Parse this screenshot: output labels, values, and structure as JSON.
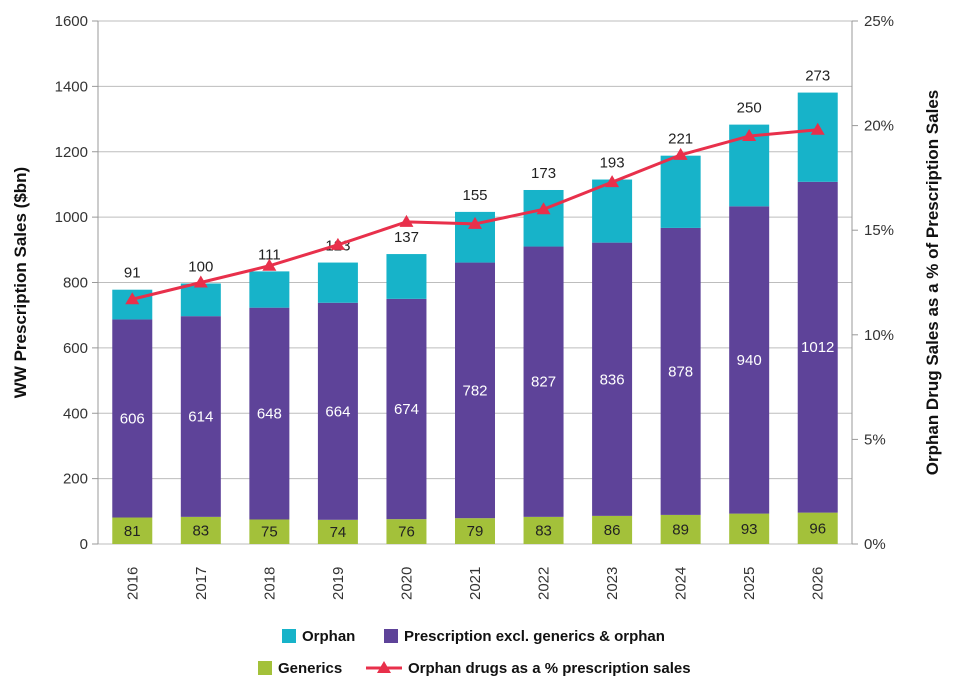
{
  "chart_data": {
    "type": "bar",
    "stacked": true,
    "categories": [
      "2016",
      "2017",
      "2018",
      "2019",
      "2020",
      "2021",
      "2022",
      "2023",
      "2024",
      "2025",
      "2026"
    ],
    "series": [
      {
        "name": "Generics",
        "values": [
          81,
          83,
          75,
          74,
          76,
          79,
          83,
          86,
          89,
          93,
          96
        ],
        "color": "#a3c13a",
        "axis": "left"
      },
      {
        "name": "Prescription excl. generics & orphan",
        "values": [
          606,
          614,
          648,
          664,
          674,
          782,
          827,
          836,
          878,
          940,
          1012
        ],
        "color": "#5e4399",
        "axis": "left"
      },
      {
        "name": "Orphan",
        "values": [
          91,
          100,
          111,
          123,
          137,
          155,
          173,
          193,
          221,
          250,
          273
        ],
        "color": "#17b3c9",
        "axis": "left"
      },
      {
        "name": "Orphan drugs as a % prescription sales",
        "type": "line",
        "values": [
          11.7,
          12.5,
          13.3,
          14.3,
          15.4,
          15.3,
          16.0,
          17.3,
          18.6,
          19.5,
          19.8
        ],
        "color": "#e8304b",
        "axis": "right"
      }
    ],
    "ylabel": "WW Prescription Sales ($bn)",
    "ylabel_right": "Orphan Drug Sales as a % of Prescription Sales",
    "ylim": [
      0,
      1600
    ],
    "yticks": [
      "0",
      "200",
      "400",
      "600",
      "800",
      "1000",
      "1200",
      "1400",
      "1600"
    ],
    "ylim_right": [
      0,
      25
    ],
    "yticks_right": [
      "0%",
      "5%",
      "10%",
      "15%",
      "20%",
      "25%"
    ],
    "grid": true,
    "legend_placement": "bottom",
    "legend_order": [
      "Orphan",
      "Prescription excl. generics & orphan",
      "Generics",
      "Orphan drugs as a % prescription sales"
    ]
  }
}
